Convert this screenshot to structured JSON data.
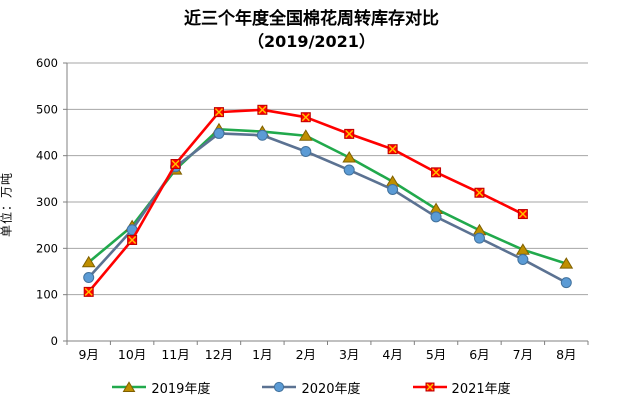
{
  "title": {
    "line1": "近三个年度全国棉花周转库存对比",
    "line2": "（2019/2021）"
  },
  "chart_data": {
    "type": "line",
    "title": "近三个年度全国棉花周转库存对比（2019/2021）",
    "xlabel": "",
    "ylabel": "单位：万吨",
    "ylim": [
      0,
      600
    ],
    "ytick_step": 100,
    "grid": true,
    "legend_position": "bottom",
    "categories": [
      "9月",
      "10月",
      "11月",
      "12月",
      "1月",
      "2月",
      "3月",
      "4月",
      "5月",
      "6月",
      "7月",
      "8月"
    ],
    "series": [
      {
        "name": "2019年度",
        "marker": "triangle",
        "line_color": "#21A94C",
        "marker_fill": "#BF8F00",
        "marker_stroke": "#7F6000",
        "values": [
          170,
          248,
          370,
          457,
          452,
          443,
          396,
          344,
          285,
          239,
          197,
          167
        ]
      },
      {
        "name": "2020年度",
        "marker": "circle",
        "line_color": "#5B7292",
        "marker_fill": "#5B9BD5",
        "marker_stroke": "#41719C",
        "values": [
          137,
          240,
          376,
          448,
          444,
          409,
          369,
          327,
          268,
          222,
          176,
          126
        ]
      },
      {
        "name": "2021年度",
        "marker": "square-x",
        "line_color": "#FF0000",
        "marker_fill": "#FF0000",
        "marker_stroke": "#C00000",
        "marker_x_color": "#FFC000",
        "values": [
          106,
          218,
          382,
          494,
          499,
          483,
          447,
          414,
          364,
          320,
          274,
          null
        ]
      }
    ],
    "colors": {
      "grid": "#A6A6A6",
      "axis": "#808080",
      "tick_text": "#000000"
    }
  }
}
